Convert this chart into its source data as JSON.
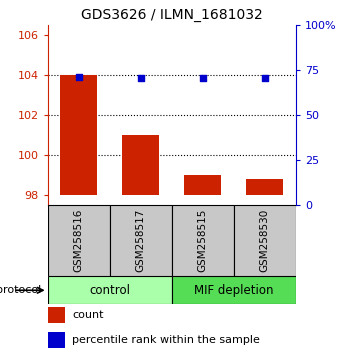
{
  "title": "GDS3626 / ILMN_1681032",
  "samples": [
    "GSM258516",
    "GSM258517",
    "GSM258515",
    "GSM258530"
  ],
  "bar_values": [
    104.0,
    101.0,
    99.0,
    98.8
  ],
  "percentile_values": [
    71.0,
    70.5,
    70.5,
    70.5
  ],
  "bar_color": "#cc2200",
  "dot_color": "#0000cc",
  "ylim_left": [
    97.5,
    106.5
  ],
  "ylim_right": [
    0,
    100
  ],
  "yticks_left": [
    98,
    100,
    102,
    104,
    106
  ],
  "yticks_right": [
    0,
    25,
    50,
    75,
    100
  ],
  "yticklabels_right": [
    "0",
    "25",
    "50",
    "75",
    "100%"
  ],
  "baseline": 98.0,
  "groups": [
    {
      "label": "control",
      "indices": [
        0,
        1
      ],
      "color": "#aaffaa"
    },
    {
      "label": "MIF depletion",
      "indices": [
        2,
        3
      ],
      "color": "#55dd55"
    }
  ],
  "protocol_label": "protocol",
  "legend_count_label": "count",
  "legend_pct_label": "percentile rank within the sample",
  "bar_width": 0.6,
  "left_color": "#cc2200",
  "right_color": "#0000cc",
  "bg_label": "#c8c8c8",
  "gridline_ticks": [
    100,
    102,
    104
  ]
}
